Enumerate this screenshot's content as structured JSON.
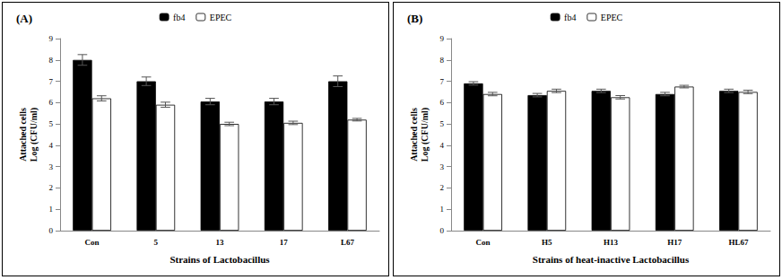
{
  "chart_data": [
    {
      "type": "bar",
      "title": "(A)",
      "x_label": "Strains of Lactobacillus",
      "y_label": "Attached cells\nLog (CFU/ml)",
      "categories": [
        "Con",
        "5",
        "13",
        "17",
        "L67"
      ],
      "series": [
        {
          "name": "fb4",
          "color": "#000000",
          "values": [
            8.0,
            7.0,
            6.05,
            6.05,
            7.0
          ],
          "errors": [
            0.25,
            0.2,
            0.15,
            0.15,
            0.25
          ]
        },
        {
          "name": "EPEC",
          "color": "#ffffff",
          "values": [
            6.2,
            5.9,
            5.0,
            5.05,
            5.2
          ],
          "errors": [
            0.12,
            0.12,
            0.08,
            0.08,
            0.06
          ]
        }
      ],
      "ylim": [
        0,
        9
      ],
      "yticks": [
        0,
        1,
        2,
        3,
        4,
        5,
        6,
        7,
        8,
        9
      ],
      "legend": "top"
    },
    {
      "type": "bar",
      "title": "(B)",
      "x_label": "Strains of heat-inactive Lactobacillus",
      "y_label": "Attached cells\nLog (CFU/ml)",
      "categories": [
        "Con",
        "H5",
        "H13",
        "H17",
        "HL67"
      ],
      "series": [
        {
          "name": "fb4",
          "color": "#000000",
          "values": [
            6.9,
            6.35,
            6.55,
            6.4,
            6.55
          ],
          "errors": [
            0.08,
            0.08,
            0.08,
            0.08,
            0.08
          ]
        },
        {
          "name": "EPEC",
          "color": "#ffffff",
          "values": [
            6.4,
            6.55,
            6.25,
            6.75,
            6.5
          ],
          "errors": [
            0.08,
            0.08,
            0.08,
            0.06,
            0.08
          ]
        }
      ],
      "ylim": [
        0,
        9
      ],
      "yticks": [
        0,
        1,
        2,
        3,
        4,
        5,
        6,
        7,
        8,
        9
      ],
      "legend": "top"
    }
  ]
}
